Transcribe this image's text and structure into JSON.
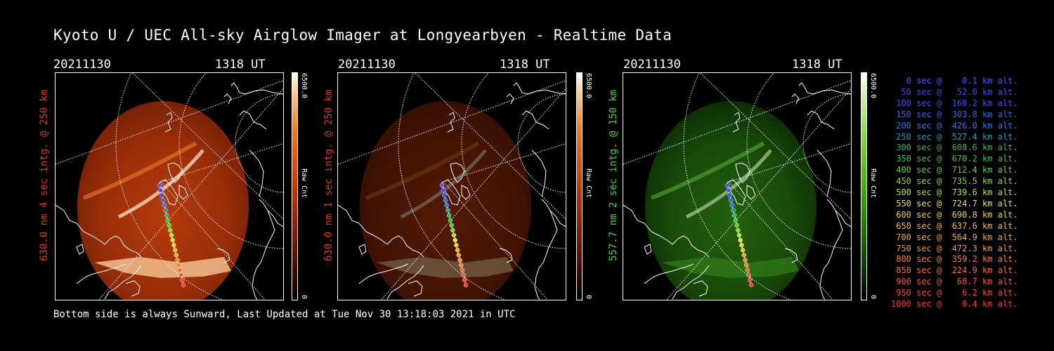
{
  "title": "Kyoto U / UEC All-sky Airglow Imager at Longyearbyen - Realtime Data",
  "footer": "Bottom side is always Sunward, Last Updated at Tue Nov 30 13:18:03 2021 in UTC",
  "panels": [
    {
      "date": "20211130",
      "time": "1318 UT",
      "side_label": "630.0 nm 4 sec intg. @ 250 km",
      "label_color": "#e03a1a",
      "cbar_max": "6500.0",
      "cbar_min": "0",
      "cbar_unit": "Raw Cnt",
      "colormap": "red",
      "brightness": 1.0
    },
    {
      "date": "20211130",
      "time": "1318 UT",
      "side_label": "630.0 nm 1 sec intg. @ 250 km",
      "label_color": "#e03a1a",
      "cbar_max": "6500.0",
      "cbar_min": "0",
      "cbar_unit": "Raw Cnt",
      "colormap": "red",
      "brightness": 0.45
    },
    {
      "date": "20211130",
      "time": "1318 UT",
      "side_label": "557.7 nm 2 sec intg. @ 150 km",
      "label_color": "#3ed63e",
      "cbar_max": "6500.0",
      "cbar_min": "0",
      "cbar_unit": "Raw Cnt",
      "colormap": "green",
      "brightness": 0.8
    }
  ],
  "legend": [
    {
      "text": "   0 sec @    0.1 km alt.",
      "color": "#5050ff"
    },
    {
      "text": "  50 sec @   52.0 km alt.",
      "color": "#4646f0"
    },
    {
      "text": " 100 sec @  160.2 km alt.",
      "color": "#3c50f0"
    },
    {
      "text": " 150 sec @  303.8 km alt.",
      "color": "#3264e6"
    },
    {
      "text": " 200 sec @  426.0 km alt.",
      "color": "#2878dc"
    },
    {
      "text": " 250 sec @  527.4 km alt.",
      "color": "#2896b4"
    },
    {
      "text": " 300 sec @  608.6 km alt.",
      "color": "#32b464"
    },
    {
      "text": " 350 sec @  670.2 km alt.",
      "color": "#3cc83c"
    },
    {
      "text": " 400 sec @  712.4 km alt.",
      "color": "#5ad232"
    },
    {
      "text": " 450 sec @  735.5 km alt.",
      "color": "#82dc32"
    },
    {
      "text": " 500 sec @  739.6 km alt.",
      "color": "#aae632"
    },
    {
      "text": " 550 sec @  724.7 km alt.",
      "color": "#e6e632"
    },
    {
      "text": " 600 sec @  690.8 km alt.",
      "color": "#f0d232"
    },
    {
      "text": " 650 sec @  637.6 km alt.",
      "color": "#f0be32"
    },
    {
      "text": " 700 sec @  564.9 km alt.",
      "color": "#f0aa32"
    },
    {
      "text": " 750 sec @  472.3 km alt.",
      "color": "#f09632"
    },
    {
      "text": " 800 sec @  359.2 km alt.",
      "color": "#f08232"
    },
    {
      "text": " 850 sec @  224.9 km alt.",
      "color": "#f06e32"
    },
    {
      "text": " 900 sec @   68.7 km alt.",
      "color": "#f05a32"
    },
    {
      "text": " 950 sec @    6.2 km alt.",
      "color": "#f04632"
    },
    {
      "text": "1000 sec @    0.4 km alt.",
      "color": "#f03c32"
    }
  ]
}
